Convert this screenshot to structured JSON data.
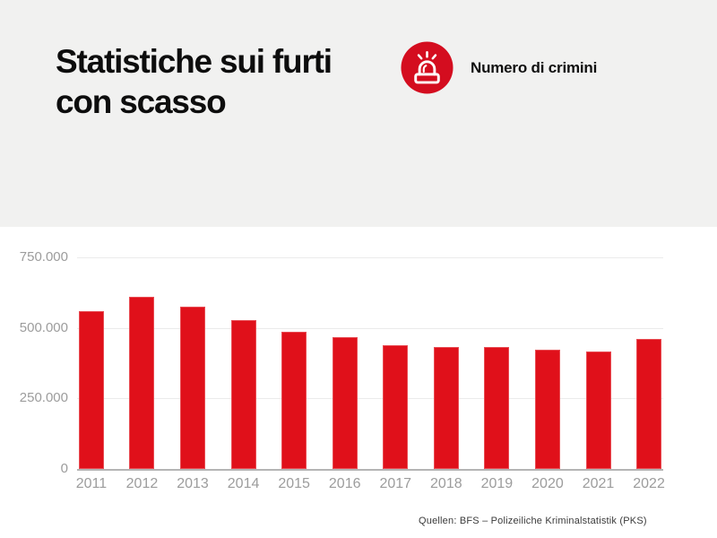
{
  "header": {
    "title_line1": "Statistiche sui furti",
    "title_line2": "con scasso",
    "legend": {
      "icon": "siren-icon",
      "label": "Numero di crimini"
    }
  },
  "chart_data": {
    "type": "bar",
    "title": "Statistiche sui furti con scasso",
    "legend_label": "Numero di crimini",
    "categories": [
      "2011",
      "2012",
      "2013",
      "2014",
      "2015",
      "2016",
      "2017",
      "2018",
      "2019",
      "2020",
      "2021",
      "2022"
    ],
    "values": [
      559000,
      611000,
      576000,
      527000,
      487000,
      466000,
      437000,
      431000,
      433000,
      422000,
      416000,
      460000
    ],
    "ylim": [
      0,
      750000
    ],
    "ytick_values": [
      750000,
      500000,
      250000,
      0
    ],
    "ytick_labels": [
      "750.000",
      "500.000",
      "250.000",
      "0"
    ],
    "xlabel": "",
    "ylabel": "",
    "grid": "horizontal",
    "legend_position": "top-right",
    "bar_color": "#e0101a"
  },
  "footer": {
    "source": "Quellen: BFS – Polizeiliche Kriminalstatistik (PKS)"
  },
  "colors": {
    "bar_red": "#e0101a",
    "icon_circle_red": "#d40d1f",
    "header_bg": "#f1f1f0",
    "axis_text": "#9c9c9c",
    "gridline": "#ebebeb",
    "baseline": "#b4b4b4",
    "title_text": "#0d0d0d",
    "source_text": "#3a3a3a"
  }
}
